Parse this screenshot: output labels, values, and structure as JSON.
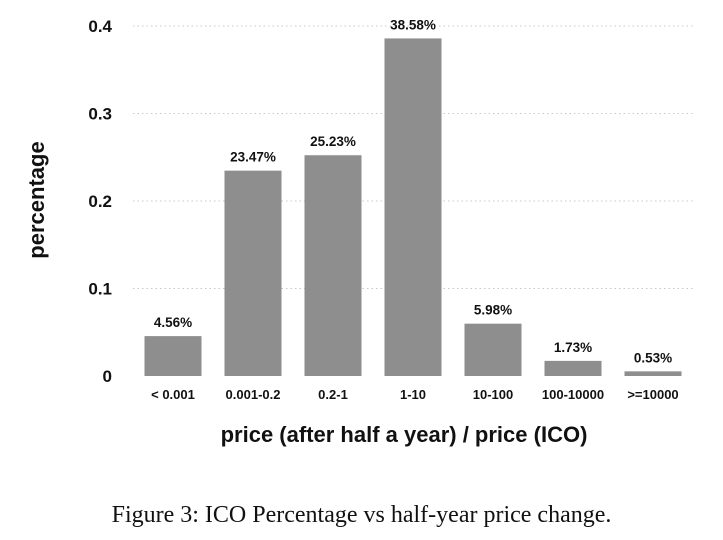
{
  "chart_data": {
    "type": "bar",
    "categories": [
      "< 0.001",
      "0.001-0.2",
      "0.2-1",
      "1-10",
      "10-100",
      "100-10000",
      ">=10000"
    ],
    "values": [
      0.0456,
      0.2347,
      0.2523,
      0.3858,
      0.0598,
      0.0173,
      0.0053
    ],
    "value_labels": [
      "4.56%",
      "23.47%",
      "25.23%",
      "38.58%",
      "5.98%",
      "1.73%",
      "0.53%"
    ],
    "xlabel": "price (after half a year) / price (ICO)",
    "ylabel": "percentage",
    "ylim": [
      0,
      0.4
    ],
    "yticks": [
      0,
      0.1,
      0.2,
      0.3,
      0.4
    ],
    "ytick_labels": [
      "0",
      "0.1",
      "0.2",
      "0.3",
      "0.4"
    ],
    "grid": true,
    "bar_color": "#8e8e8e"
  },
  "caption": "Figure 3: ICO Percentage vs half-year price change."
}
